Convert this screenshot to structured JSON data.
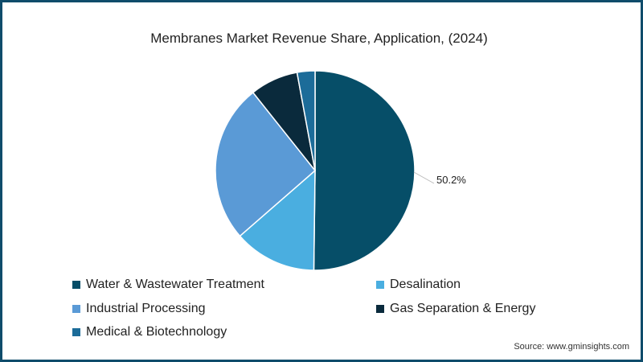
{
  "chart_data": {
    "type": "pie",
    "title": "Membranes Market Revenue Share, Application, (2024)",
    "categories": [
      "Water & Wastewater Treatment",
      "Desalination",
      "Industrial Processing",
      "Gas Separation & Energy",
      "Medical & Biotechnology"
    ],
    "values": [
      50.2,
      13.4,
      25.7,
      7.8,
      2.9
    ],
    "colors": [
      "#064e68",
      "#4aaee0",
      "#5a9ad6",
      "#0a2a3c",
      "#1c6c99"
    ],
    "data_labels": [
      {
        "category": "Water & Wastewater Treatment",
        "label": "50.2%"
      }
    ],
    "legend_position": "bottom"
  },
  "title": "Membranes Market Revenue Share, Application, (2024)",
  "callout": "50.2%",
  "legend": [
    {
      "label": "Water & Wastewater Treatment",
      "color": "#064e68"
    },
    {
      "label": "Desalination",
      "color": "#4aaee0"
    },
    {
      "label": "Industrial Processing",
      "color": "#5a9ad6"
    },
    {
      "label": "Gas Separation & Energy",
      "color": "#0a2a3c"
    },
    {
      "label": "Medical & Biotechnology",
      "color": "#1c6c99"
    }
  ],
  "source": "Source: www.gminsights.com"
}
